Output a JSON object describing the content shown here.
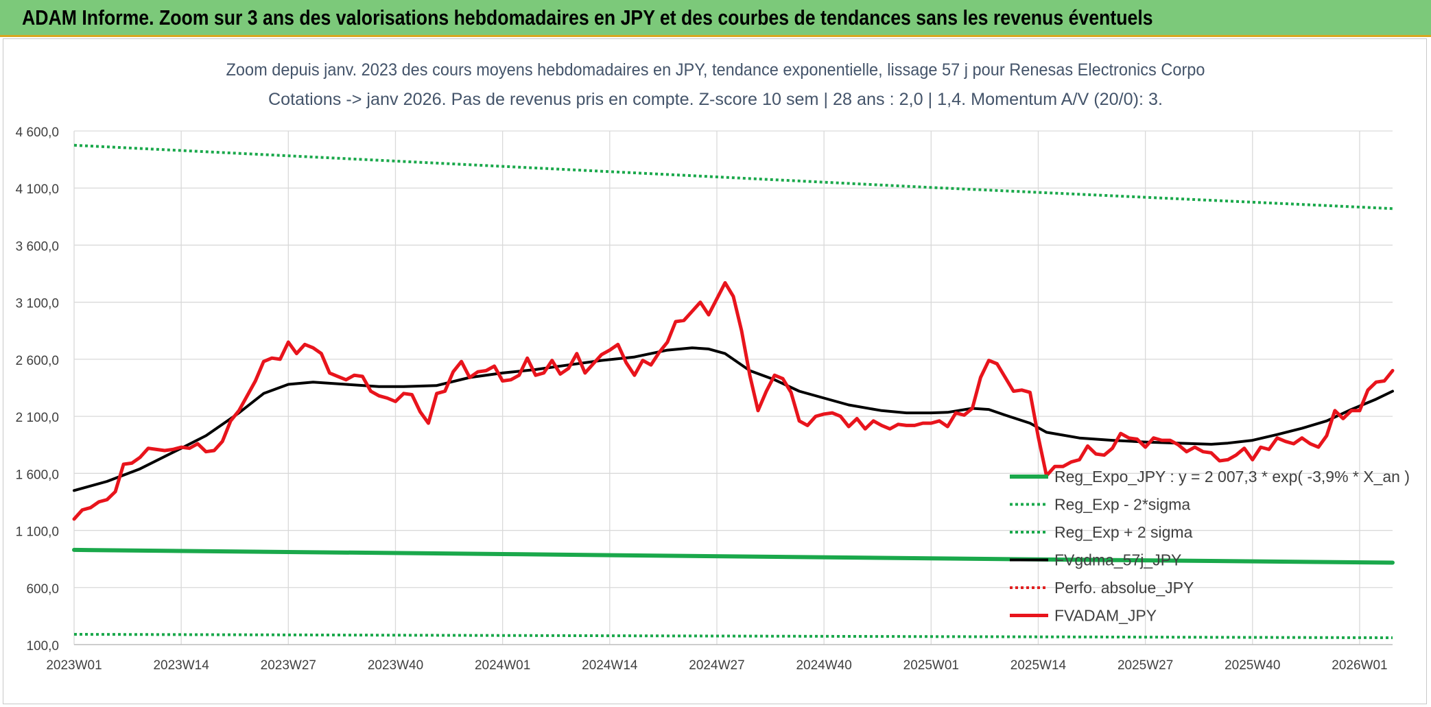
{
  "banner": {
    "title": "ADAM Informe. Zoom sur 3 ans des valorisations hebdomadaires en JPY et des courbes de tendances sans les revenus éventuels"
  },
  "chart_data": {
    "type": "line",
    "title": "Zoom depuis janv. 2023 des cours moyens hebdomadaires en JPY, tendance exponentielle, lissage 57 j pour Renesas Electronics Corpo",
    "subtitle": "Cotations -> janv 2026. Pas de revenus pris en compte. Z-score 10 sem | 28 ans : 2,0 | 1,4. Momentum A/V (20/0): 3.",
    "xlabel": "",
    "ylabel": "",
    "ylim": [
      100,
      4600
    ],
    "grid": true,
    "legend_position": "right",
    "y_ticks": [
      {
        "value": 4600,
        "label": "4 600,0"
      },
      {
        "value": 4100,
        "label": "4 100,0"
      },
      {
        "value": 3600,
        "label": "3 600,0"
      },
      {
        "value": 3100,
        "label": "3 100,0"
      },
      {
        "value": 2600,
        "label": "2 600,0"
      },
      {
        "value": 2100,
        "label": "2 100,0"
      },
      {
        "value": 1600,
        "label": "1 600,0"
      },
      {
        "value": 1100,
        "label": "1 100,0"
      },
      {
        "value": 600,
        "label": "600,0"
      },
      {
        "value": 100,
        "label": "100,0"
      }
    ],
    "x_ticks": [
      {
        "index": 0,
        "label": "2023W01"
      },
      {
        "index": 13,
        "label": "2023W14"
      },
      {
        "index": 26,
        "label": "2023W27"
      },
      {
        "index": 39,
        "label": "2023W40"
      },
      {
        "index": 52,
        "label": "2024W01"
      },
      {
        "index": 65,
        "label": "2024W14"
      },
      {
        "index": 78,
        "label": "2024W27"
      },
      {
        "index": 91,
        "label": "2024W40"
      },
      {
        "index": 104,
        "label": "2025W01"
      },
      {
        "index": 117,
        "label": "2025W14"
      },
      {
        "index": 130,
        "label": "2025W27"
      },
      {
        "index": 143,
        "label": "2025W40"
      },
      {
        "index": 156,
        "label": "2026W01"
      }
    ],
    "n_weeks": 161,
    "series": [
      {
        "name": "Reg_Expo_JPY : y = 2 007,3 * exp( -3,9% *  X_an )",
        "color": "#1aa84b",
        "style": "solid",
        "width": 6,
        "points": [
          [
            0,
            930
          ],
          [
            52,
            893
          ],
          [
            104,
            855
          ],
          [
            160,
            818
          ]
        ]
      },
      {
        "name": "Reg_Exp - 2*sigma",
        "color": "#1aa84b",
        "style": "dotted",
        "width": 4,
        "points": [
          [
            0,
            190
          ],
          [
            52,
            180
          ],
          [
            104,
            170
          ],
          [
            160,
            160
          ]
        ]
      },
      {
        "name": "Reg_Exp + 2 sigma",
        "color": "#1aa84b",
        "style": "dotted",
        "width": 4,
        "points": [
          [
            0,
            4475
          ],
          [
            52,
            4290
          ],
          [
            104,
            4105
          ],
          [
            160,
            3920
          ]
        ]
      },
      {
        "name": "FVgdma_57j_JPY",
        "color": "#000000",
        "style": "solid",
        "width": 4,
        "points": [
          [
            0,
            1450
          ],
          [
            4,
            1530
          ],
          [
            8,
            1640
          ],
          [
            13,
            1820
          ],
          [
            16,
            1930
          ],
          [
            20,
            2130
          ],
          [
            23,
            2300
          ],
          [
            26,
            2380
          ],
          [
            29,
            2400
          ],
          [
            33,
            2380
          ],
          [
            37,
            2360
          ],
          [
            40,
            2360
          ],
          [
            44,
            2370
          ],
          [
            48,
            2440
          ],
          [
            52,
            2480
          ],
          [
            56,
            2510
          ],
          [
            60,
            2550
          ],
          [
            64,
            2590
          ],
          [
            68,
            2620
          ],
          [
            72,
            2680
          ],
          [
            75,
            2700
          ],
          [
            77,
            2690
          ],
          [
            79,
            2650
          ],
          [
            82,
            2500
          ],
          [
            85,
            2420
          ],
          [
            88,
            2320
          ],
          [
            91,
            2260
          ],
          [
            94,
            2200
          ],
          [
            98,
            2150
          ],
          [
            101,
            2130
          ],
          [
            104,
            2130
          ],
          [
            106,
            2135
          ],
          [
            109,
            2170
          ],
          [
            111,
            2160
          ],
          [
            113,
            2110
          ],
          [
            116,
            2040
          ],
          [
            118,
            1960
          ],
          [
            122,
            1910
          ],
          [
            126,
            1890
          ],
          [
            130,
            1875
          ],
          [
            134,
            1865
          ],
          [
            138,
            1855
          ],
          [
            140,
            1865
          ],
          [
            143,
            1890
          ],
          [
            146,
            1940
          ],
          [
            149,
            1995
          ],
          [
            152,
            2060
          ],
          [
            155,
            2160
          ],
          [
            158,
            2250
          ],
          [
            160,
            2320
          ]
        ]
      },
      {
        "name": "Perfo. absolue_JPY",
        "color": "#e02020",
        "style": "dotted",
        "width": 4,
        "points": []
      },
      {
        "name": "FVADAM_JPY",
        "color": "#e8141c",
        "style": "solid",
        "width": 5,
        "points": [
          [
            0,
            1200
          ],
          [
            1,
            1280
          ],
          [
            2,
            1300
          ],
          [
            3,
            1350
          ],
          [
            4,
            1370
          ],
          [
            5,
            1440
          ],
          [
            6,
            1680
          ],
          [
            7,
            1690
          ],
          [
            8,
            1740
          ],
          [
            9,
            1820
          ],
          [
            10,
            1810
          ],
          [
            11,
            1800
          ],
          [
            12,
            1810
          ],
          [
            13,
            1830
          ],
          [
            14,
            1820
          ],
          [
            15,
            1860
          ],
          [
            16,
            1790
          ],
          [
            17,
            1800
          ],
          [
            18,
            1880
          ],
          [
            19,
            2060
          ],
          [
            20,
            2150
          ],
          [
            21,
            2280
          ],
          [
            22,
            2410
          ],
          [
            23,
            2580
          ],
          [
            24,
            2610
          ],
          [
            25,
            2600
          ],
          [
            26,
            2750
          ],
          [
            27,
            2650
          ],
          [
            28,
            2730
          ],
          [
            29,
            2700
          ],
          [
            30,
            2650
          ],
          [
            31,
            2480
          ],
          [
            32,
            2450
          ],
          [
            33,
            2420
          ],
          [
            34,
            2460
          ],
          [
            35,
            2450
          ],
          [
            36,
            2320
          ],
          [
            37,
            2280
          ],
          [
            38,
            2260
          ],
          [
            39,
            2230
          ],
          [
            40,
            2300
          ],
          [
            41,
            2290
          ],
          [
            42,
            2140
          ],
          [
            43,
            2040
          ],
          [
            44,
            2300
          ],
          [
            45,
            2320
          ],
          [
            46,
            2490
          ],
          [
            47,
            2580
          ],
          [
            48,
            2440
          ],
          [
            49,
            2490
          ],
          [
            50,
            2500
          ],
          [
            51,
            2540
          ],
          [
            52,
            2410
          ],
          [
            53,
            2420
          ],
          [
            54,
            2460
          ],
          [
            55,
            2610
          ],
          [
            56,
            2460
          ],
          [
            57,
            2480
          ],
          [
            58,
            2590
          ],
          [
            59,
            2470
          ],
          [
            60,
            2520
          ],
          [
            61,
            2650
          ],
          [
            62,
            2480
          ],
          [
            63,
            2560
          ],
          [
            64,
            2640
          ],
          [
            65,
            2680
          ],
          [
            66,
            2730
          ],
          [
            67,
            2570
          ],
          [
            68,
            2460
          ],
          [
            69,
            2590
          ],
          [
            70,
            2550
          ],
          [
            71,
            2660
          ],
          [
            72,
            2750
          ],
          [
            73,
            2930
          ],
          [
            74,
            2940
          ],
          [
            75,
            3020
          ],
          [
            76,
            3100
          ],
          [
            77,
            2990
          ],
          [
            78,
            3130
          ],
          [
            79,
            3270
          ],
          [
            80,
            3150
          ],
          [
            81,
            2850
          ],
          [
            82,
            2460
          ],
          [
            83,
            2150
          ],
          [
            84,
            2320
          ],
          [
            85,
            2460
          ],
          [
            86,
            2430
          ],
          [
            87,
            2310
          ],
          [
            88,
            2060
          ],
          [
            89,
            2020
          ],
          [
            90,
            2100
          ],
          [
            91,
            2120
          ],
          [
            92,
            2130
          ],
          [
            93,
            2100
          ],
          [
            94,
            2010
          ],
          [
            95,
            2080
          ],
          [
            96,
            1990
          ],
          [
            97,
            2060
          ],
          [
            98,
            2020
          ],
          [
            99,
            1990
          ],
          [
            100,
            2030
          ],
          [
            101,
            2020
          ],
          [
            102,
            2020
          ],
          [
            103,
            2040
          ],
          [
            104,
            2040
          ],
          [
            105,
            2060
          ],
          [
            106,
            2010
          ],
          [
            107,
            2130
          ],
          [
            108,
            2110
          ],
          [
            109,
            2170
          ],
          [
            110,
            2440
          ],
          [
            111,
            2590
          ],
          [
            112,
            2560
          ],
          [
            113,
            2440
          ],
          [
            114,
            2320
          ],
          [
            115,
            2330
          ],
          [
            116,
            2310
          ],
          [
            117,
            1920
          ],
          [
            118,
            1580
          ],
          [
            119,
            1660
          ],
          [
            120,
            1660
          ],
          [
            121,
            1700
          ],
          [
            122,
            1720
          ],
          [
            123,
            1840
          ],
          [
            124,
            1770
          ],
          [
            125,
            1760
          ],
          [
            126,
            1820
          ],
          [
            127,
            1950
          ],
          [
            128,
            1910
          ],
          [
            129,
            1900
          ],
          [
            130,
            1830
          ],
          [
            131,
            1910
          ],
          [
            132,
            1890
          ],
          [
            133,
            1890
          ],
          [
            134,
            1850
          ],
          [
            135,
            1790
          ],
          [
            136,
            1830
          ],
          [
            137,
            1790
          ],
          [
            138,
            1780
          ],
          [
            139,
            1710
          ],
          [
            140,
            1720
          ],
          [
            141,
            1760
          ],
          [
            142,
            1820
          ],
          [
            143,
            1720
          ],
          [
            144,
            1830
          ],
          [
            145,
            1810
          ],
          [
            146,
            1910
          ],
          [
            147,
            1880
          ],
          [
            148,
            1860
          ],
          [
            149,
            1910
          ],
          [
            150,
            1860
          ],
          [
            151,
            1830
          ],
          [
            152,
            1930
          ],
          [
            153,
            2150
          ],
          [
            154,
            2080
          ],
          [
            155,
            2150
          ],
          [
            156,
            2150
          ],
          [
            157,
            2330
          ],
          [
            158,
            2400
          ],
          [
            159,
            2410
          ],
          [
            160,
            2500
          ]
        ]
      }
    ]
  }
}
